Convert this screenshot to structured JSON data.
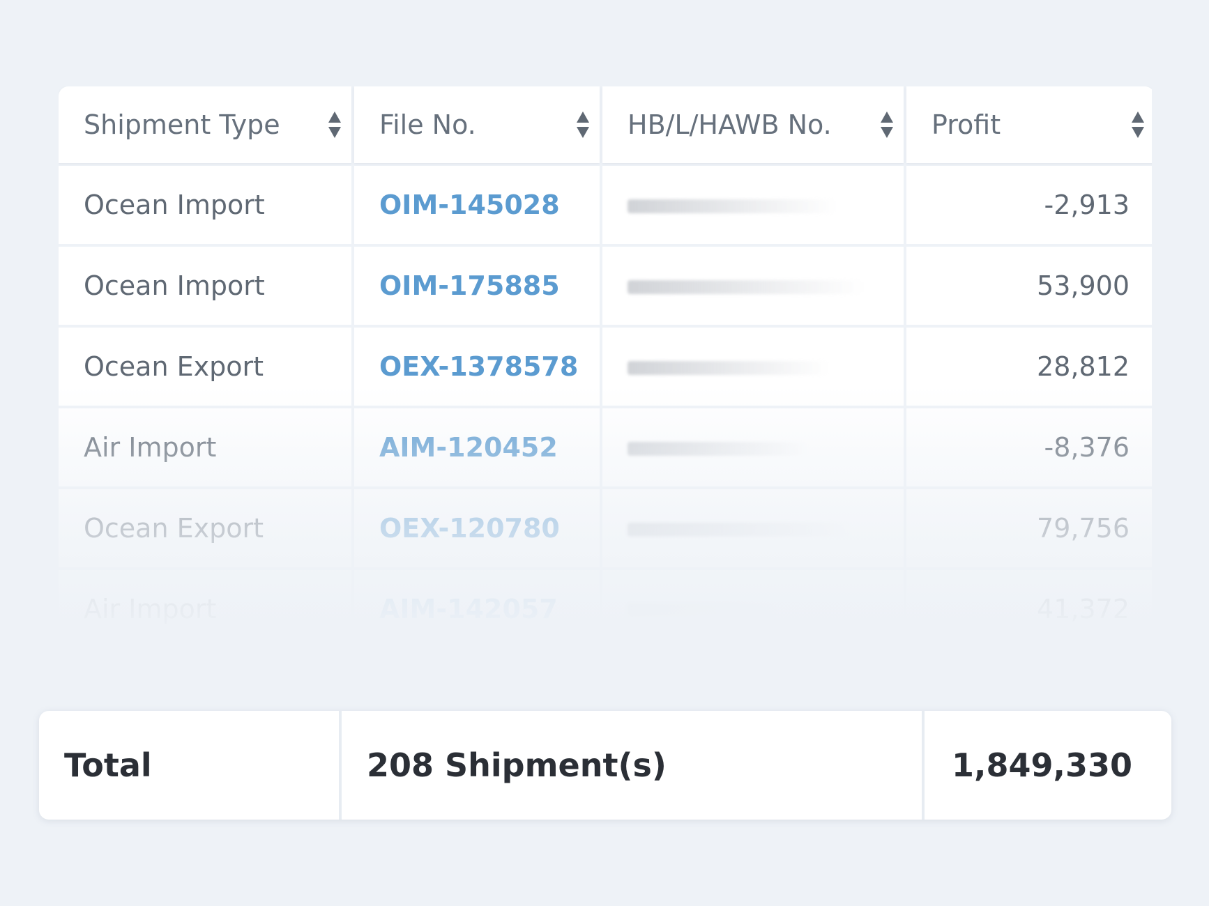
{
  "table": {
    "headers": [
      {
        "label": "Shipment Type",
        "sort_icon": "sort-updown-icon"
      },
      {
        "label": "File No.",
        "sort_icon": "sort-updown-icon"
      },
      {
        "label": "HB/L/HAWB No.",
        "sort_icon": "sort-updown-icon"
      },
      {
        "label": "Profit",
        "sort_icon": "sort-updown-icon"
      }
    ],
    "rows": [
      {
        "type": "Ocean Import",
        "file_no": "OIM-145028",
        "hbl": "",
        "profit": "-2,913"
      },
      {
        "type": "Ocean Import",
        "file_no": "OIM-175885",
        "hbl": "",
        "profit": "53,900"
      },
      {
        "type": "Ocean Export",
        "file_no": "OEX-1378578",
        "hbl": "",
        "profit": "28,812"
      },
      {
        "type": "Air Import",
        "file_no": "AIM-120452",
        "hbl": "",
        "profit": "-8,376"
      },
      {
        "type": "Ocean Export",
        "file_no": "OEX-120780",
        "hbl": "",
        "profit": "79,756"
      },
      {
        "type": "Air Import",
        "file_no": "AIM-142057",
        "hbl": "",
        "profit": "41,372"
      }
    ]
  },
  "totals": {
    "label": "Total",
    "shipments": "208 Shipment(s)",
    "profit": "1,849,330"
  },
  "colors": {
    "background": "#eef2f7",
    "link": "#5b9bd0",
    "text": "#5f6873",
    "total_text": "#2b2f36"
  }
}
